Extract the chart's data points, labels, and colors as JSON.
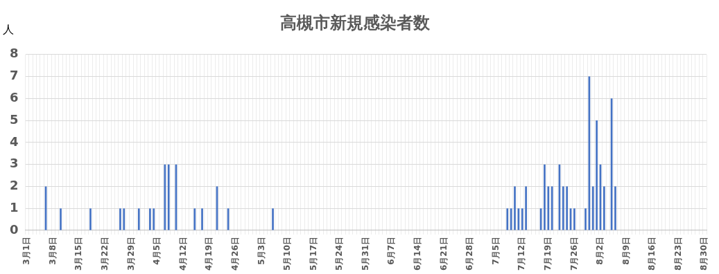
{
  "chart_data": {
    "type": "bar",
    "title": "高槻市新規感染者数",
    "ylabel": "人",
    "categories": [
      "3月1日",
      null,
      null,
      null,
      null,
      null,
      null,
      "3月8日",
      null,
      null,
      null,
      null,
      null,
      null,
      "3月15日",
      null,
      null,
      null,
      null,
      null,
      null,
      "3月22日",
      null,
      null,
      null,
      null,
      null,
      null,
      "3月29日",
      null,
      null,
      null,
      null,
      null,
      null,
      "4月5日",
      null,
      null,
      null,
      null,
      null,
      null,
      "4月12日",
      null,
      null,
      null,
      null,
      null,
      null,
      "4月19日",
      null,
      null,
      null,
      null,
      null,
      null,
      "4月26日",
      null,
      null,
      null,
      null,
      null,
      null,
      "5月3日",
      null,
      null,
      null,
      null,
      null,
      null,
      "5月10日",
      null,
      null,
      null,
      null,
      null,
      null,
      "5月17日",
      null,
      null,
      null,
      null,
      null,
      null,
      "5月24日",
      null,
      null,
      null,
      null,
      null,
      null,
      "5月31日",
      null,
      null,
      null,
      null,
      null,
      null,
      "6月7日",
      null,
      null,
      null,
      null,
      null,
      null,
      "6月14日",
      null,
      null,
      null,
      null,
      null,
      null,
      "6月21日",
      null,
      null,
      null,
      null,
      null,
      null,
      "6月28日",
      null,
      null,
      null,
      null,
      null,
      null,
      "7月5日",
      null,
      null,
      null,
      null,
      null,
      null,
      "7月12日",
      null,
      null,
      null,
      null,
      null,
      null,
      "7月19日",
      null,
      null,
      null,
      null,
      null,
      null,
      "7月26日",
      null,
      null,
      null,
      null,
      null,
      null,
      "8月2日",
      null,
      null,
      null,
      null,
      null,
      null,
      "8月9日",
      null,
      null,
      null,
      null,
      null,
      null,
      "8月16日",
      null,
      null,
      null,
      null,
      null,
      null,
      "8月23日",
      null,
      null,
      null,
      null,
      null,
      null,
      "8月30日"
    ],
    "values": [
      0,
      0,
      0,
      0,
      0,
      2,
      0,
      0,
      0,
      1,
      0,
      0,
      0,
      0,
      0,
      0,
      0,
      1,
      0,
      0,
      0,
      0,
      0,
      0,
      0,
      1,
      1,
      0,
      0,
      0,
      1,
      0,
      0,
      1,
      1,
      0,
      0,
      3,
      3,
      0,
      3,
      0,
      0,
      0,
      0,
      1,
      0,
      1,
      0,
      0,
      0,
      2,
      0,
      0,
      1,
      0,
      0,
      0,
      0,
      0,
      0,
      0,
      0,
      0,
      0,
      0,
      1,
      0,
      0,
      0,
      0,
      0,
      0,
      0,
      0,
      0,
      0,
      0,
      0,
      0,
      0,
      0,
      0,
      0,
      0,
      0,
      0,
      0,
      0,
      0,
      0,
      0,
      0,
      0,
      0,
      0,
      0,
      0,
      0,
      0,
      0,
      0,
      0,
      0,
      0,
      0,
      0,
      0,
      0,
      0,
      0,
      0,
      0,
      0,
      0,
      0,
      0,
      0,
      0,
      0,
      0,
      0,
      0,
      0,
      0,
      0,
      0,
      0,
      0,
      1,
      1,
      2,
      1,
      1,
      2,
      0,
      0,
      0,
      1,
      3,
      2,
      2,
      0,
      3,
      2,
      2,
      1,
      1,
      0,
      0,
      1,
      7,
      2,
      5,
      3,
      2,
      0,
      6,
      2,
      0,
      0,
      0,
      0,
      0,
      0,
      0,
      0,
      0,
      0,
      0,
      0,
      0,
      0,
      0,
      0,
      0,
      0,
      0,
      0,
      0,
      0,
      0,
      0
    ],
    "color": "#4472c4",
    "ylim": [
      0,
      8
    ],
    "yticks": [
      0,
      1,
      2,
      3,
      4,
      5,
      6,
      7,
      8
    ],
    "grid": true
  }
}
